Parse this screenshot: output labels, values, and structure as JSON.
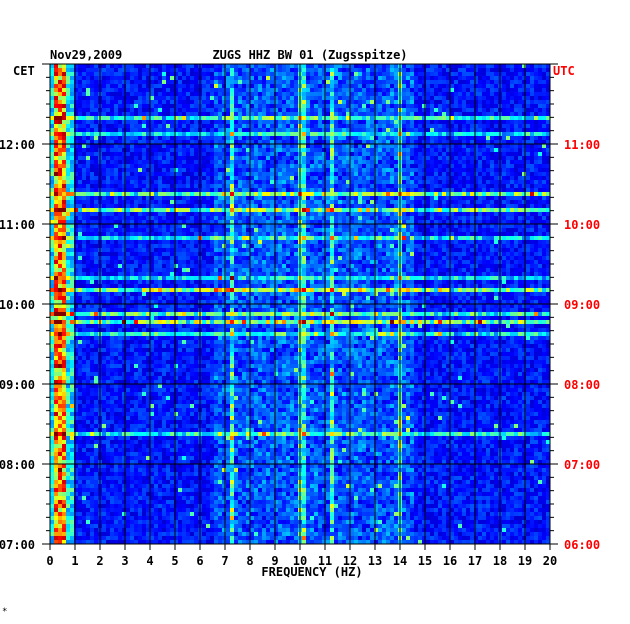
{
  "chart_data": {
    "type": "heatmap",
    "date": "Nov29,2009",
    "title": "ZUGS HHZ BW 01 (Zugsspitze)",
    "xlabel": "FREQUENCY (HZ)",
    "xlim": [
      0,
      20
    ],
    "x_ticks": [
      "0",
      "1",
      "2",
      "3",
      "4",
      "5",
      "6",
      "7",
      "8",
      "9",
      "10",
      "11",
      "12",
      "13",
      "14",
      "15",
      "16",
      "17",
      "18",
      "19",
      "20"
    ],
    "left_axis_label": "CET",
    "right_axis_label": "UTC",
    "left_ticks": [
      "07:00",
      "08:00",
      "09:00",
      "10:00",
      "11:00",
      "12:00"
    ],
    "right_ticks": [
      "06:00",
      "07:00",
      "08:00",
      "09:00",
      "10:00",
      "11:00"
    ],
    "grid": true,
    "colors": {
      "background": "#000080",
      "left_text": "#000000",
      "right_text": "#ff0000",
      "grid": "#000000"
    },
    "features": {
      "strong_band_hz": [
        0.1,
        0.6
      ],
      "persistent_lines_hz": [
        7.3,
        10.1,
        11.3,
        14.0
      ],
      "colormap": "jet"
    },
    "footer_mark": "*"
  }
}
